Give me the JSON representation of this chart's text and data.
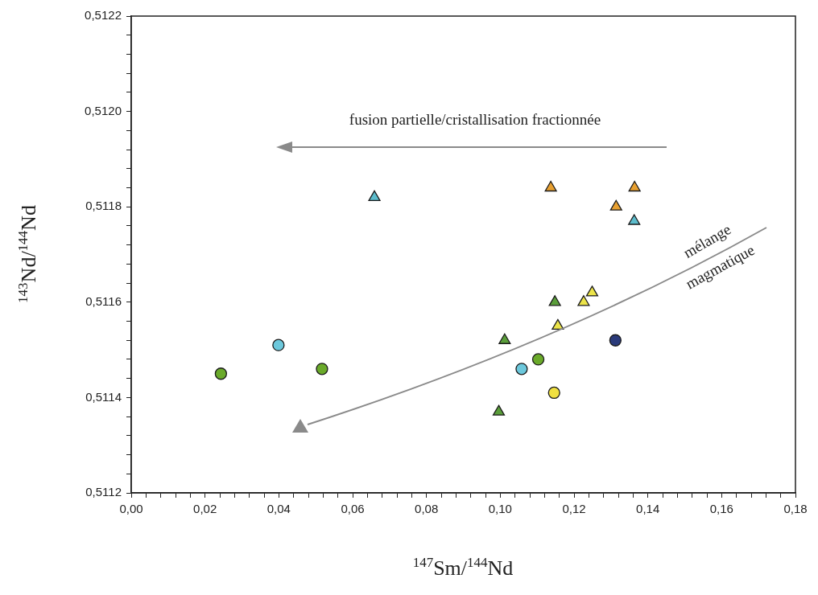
{
  "chart_data": {
    "type": "scatter",
    "xlabel": "$^{147}$Sm/$^{144}$Nd",
    "ylabel": "$^{143}$Nd/$^{144}$Nd",
    "xlim": [
      0,
      0.18
    ],
    "ylim": [
      0.5112,
      0.5122
    ],
    "xticks": [
      {
        "value": 0,
        "label": "0,00"
      },
      {
        "value": 0.004,
        "label": null
      },
      {
        "value": 0.008,
        "label": null
      },
      {
        "value": 0.012,
        "label": null
      },
      {
        "value": 0.016,
        "label": null
      },
      {
        "value": 0.02,
        "label": "0,02"
      },
      {
        "value": 0.024,
        "label": null
      },
      {
        "value": 0.028,
        "label": null
      },
      {
        "value": 0.032,
        "label": null
      },
      {
        "value": 0.036,
        "label": null
      },
      {
        "value": 0.04,
        "label": "0,04"
      },
      {
        "value": 0.044,
        "label": null
      },
      {
        "value": 0.048,
        "label": null
      },
      {
        "value": 0.052,
        "label": null
      },
      {
        "value": 0.056,
        "label": null
      },
      {
        "value": 0.06,
        "label": "0,06"
      },
      {
        "value": 0.064,
        "label": null
      },
      {
        "value": 0.068,
        "label": null
      },
      {
        "value": 0.072,
        "label": null
      },
      {
        "value": 0.076,
        "label": null
      },
      {
        "value": 0.08,
        "label": "0,08"
      },
      {
        "value": 0.084,
        "label": null
      },
      {
        "value": 0.088,
        "label": null
      },
      {
        "value": 0.092,
        "label": null
      },
      {
        "value": 0.096,
        "label": null
      },
      {
        "value": 0.1,
        "label": "0,10"
      },
      {
        "value": 0.104,
        "label": null
      },
      {
        "value": 0.108,
        "label": null
      },
      {
        "value": 0.112,
        "label": null
      },
      {
        "value": 0.116,
        "label": null
      },
      {
        "value": 0.12,
        "label": "0,12"
      },
      {
        "value": 0.124,
        "label": null
      },
      {
        "value": 0.128,
        "label": null
      },
      {
        "value": 0.132,
        "label": null
      },
      {
        "value": 0.136,
        "label": null
      },
      {
        "value": 0.14,
        "label": "0,14"
      },
      {
        "value": 0.144,
        "label": null
      },
      {
        "value": 0.148,
        "label": null
      },
      {
        "value": 0.152,
        "label": null
      },
      {
        "value": 0.156,
        "label": null
      },
      {
        "value": 0.16,
        "label": "0,16"
      },
      {
        "value": 0.164,
        "label": null
      },
      {
        "value": 0.168,
        "label": null
      },
      {
        "value": 0.172,
        "label": null
      },
      {
        "value": 0.176,
        "label": null
      },
      {
        "value": 0.18,
        "label": "0,18"
      }
    ],
    "yticks": [
      {
        "value": 0.5112,
        "label": "0,5112"
      },
      {
        "value": 0.51124,
        "label": null
      },
      {
        "value": 0.51128,
        "label": null
      },
      {
        "value": 0.51132,
        "label": null
      },
      {
        "value": 0.51136,
        "label": null
      },
      {
        "value": 0.5114,
        "label": "0,5114"
      },
      {
        "value": 0.51144,
        "label": null
      },
      {
        "value": 0.51148,
        "label": null
      },
      {
        "value": 0.51152,
        "label": null
      },
      {
        "value": 0.51156,
        "label": null
      },
      {
        "value": 0.5116,
        "label": "0,5116"
      },
      {
        "value": 0.51164,
        "label": null
      },
      {
        "value": 0.51168,
        "label": null
      },
      {
        "value": 0.51172,
        "label": null
      },
      {
        "value": 0.51176,
        "label": null
      },
      {
        "value": 0.5118,
        "label": "0,5118"
      },
      {
        "value": 0.51184,
        "label": null
      },
      {
        "value": 0.51188,
        "label": null
      },
      {
        "value": 0.51192,
        "label": null
      },
      {
        "value": 0.51196,
        "label": null
      },
      {
        "value": 0.512,
        "label": "0,5120"
      },
      {
        "value": 0.51204,
        "label": null
      },
      {
        "value": 0.51208,
        "label": null
      },
      {
        "value": 0.51212,
        "label": null
      },
      {
        "value": 0.51216,
        "label": null
      },
      {
        "value": 0.5122,
        "label": "0,5122"
      }
    ],
    "grid": false,
    "legend": false,
    "series": [
      {
        "color": "#6aaa2a",
        "marker": "circle",
        "x": [
          0.0243,
          0.0517,
          0.1103
        ],
        "values": [
          0.51145,
          0.51146,
          0.51148
        ]
      },
      {
        "color": "#6cc8dc",
        "marker": "circle",
        "x": [
          0.0399,
          0.1058
        ],
        "values": [
          0.51151,
          0.51146
        ]
      },
      {
        "color": "#f0e040",
        "marker": "circle",
        "x": [
          0.1146
        ],
        "values": [
          0.51141
        ]
      },
      {
        "color": "#2a3a7a",
        "marker": "circle",
        "x": [
          0.1312
        ],
        "values": [
          0.51152
        ]
      },
      {
        "color": "#5cbccc",
        "marker": "triangle",
        "x": [
          0.0659,
          0.1363
        ],
        "values": [
          0.51182,
          0.51177
        ]
      },
      {
        "color": "#e8a030",
        "marker": "triangle",
        "x": [
          0.1137,
          0.1364,
          0.1314
        ],
        "values": [
          0.51184,
          0.51184,
          0.5118
        ]
      },
      {
        "color": "#5a9e3a",
        "marker": "triangle",
        "x": [
          0.0996,
          0.1012,
          0.1148
        ],
        "values": [
          0.51137,
          0.51152,
          0.5116
        ]
      },
      {
        "color": "#ece44a",
        "marker": "triangle",
        "x": [
          0.1156,
          0.1226,
          0.1249
        ],
        "values": [
          0.51155,
          0.5116,
          0.51162
        ]
      }
    ],
    "annotations": [
      "fusion partielle/cristallisation fractionnée",
      "mélange",
      "magmatique"
    ]
  }
}
